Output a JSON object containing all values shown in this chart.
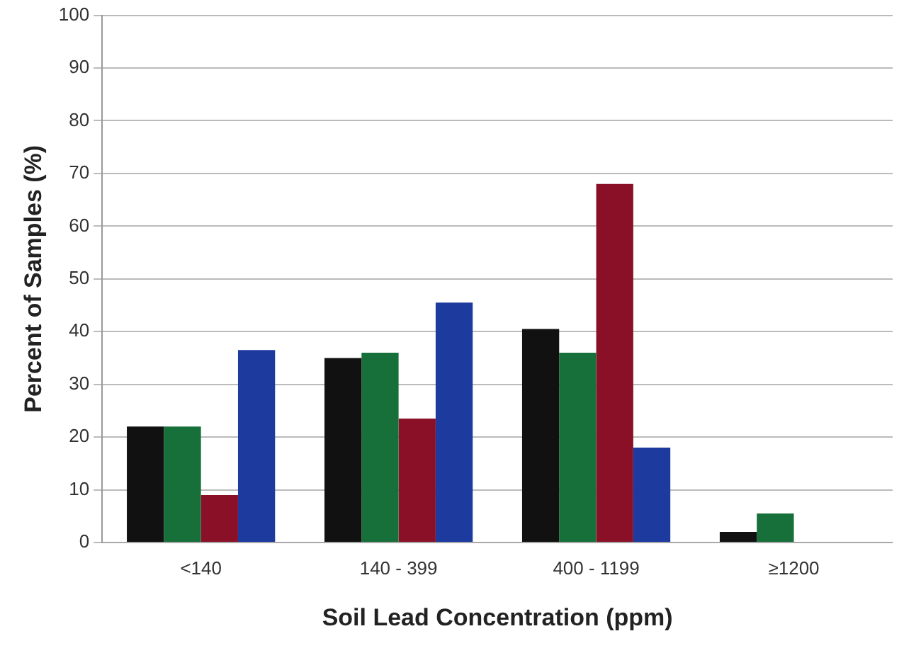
{
  "chart_data": {
    "type": "bar",
    "xlabel": "Soil Lead Concentration (ppm)",
    "ylabel": "Percent of Samples (%)",
    "categories": [
      "<140",
      "140 - 399",
      "400 - 1199",
      "≥1200"
    ],
    "series": [
      {
        "color": "#111111",
        "values": [
          22,
          35,
          40.5,
          2
        ]
      },
      {
        "color": "#17703a",
        "values": [
          22,
          36,
          36,
          5.5
        ]
      },
      {
        "color": "#8a1028",
        "values": [
          9,
          23.5,
          68,
          0
        ]
      },
      {
        "color": "#1d3a9e",
        "values": [
          36.5,
          45.5,
          18,
          0
        ]
      }
    ],
    "ylim": [
      0,
      100
    ],
    "yticks": [
      0,
      10,
      20,
      30,
      40,
      50,
      60,
      70,
      80,
      90,
      100
    ],
    "grid": "y",
    "legend": false
  }
}
